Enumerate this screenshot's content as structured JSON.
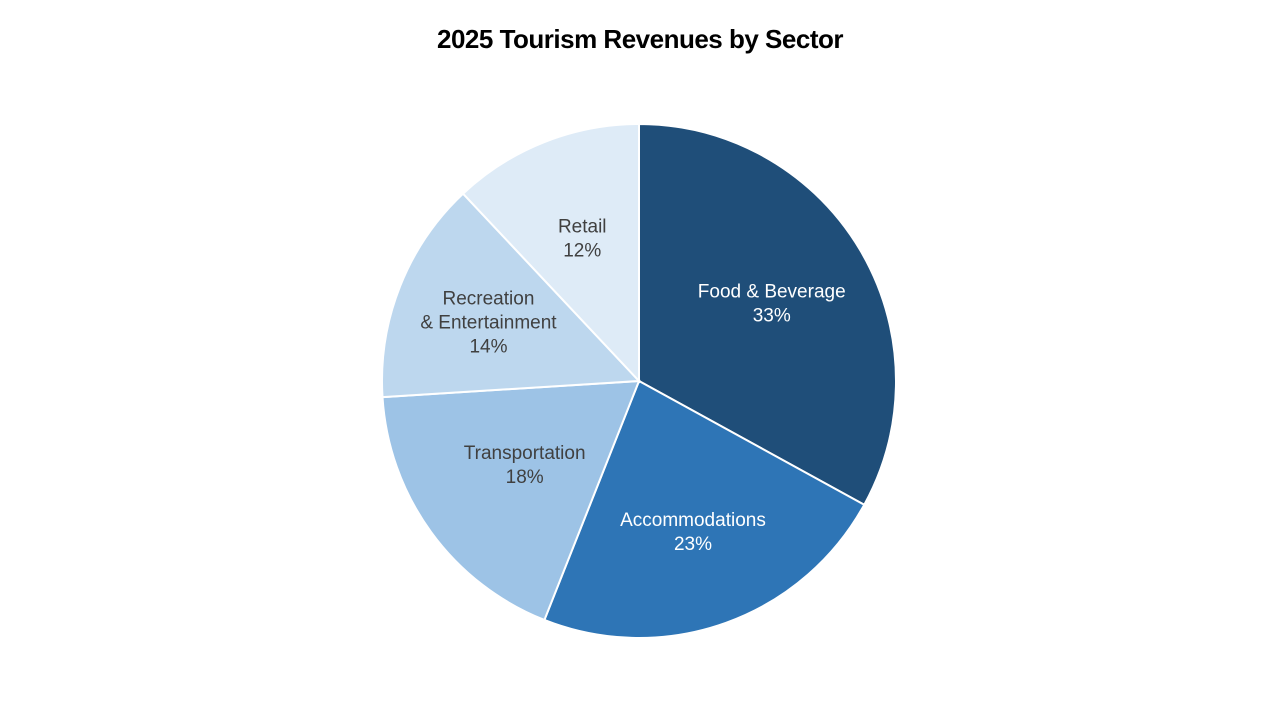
{
  "chart_data": {
    "type": "pie",
    "title": "2025 Tourism Revenues by Sector",
    "start": "top",
    "direction": "clockwise",
    "slices": [
      {
        "label_lines": [
          "Food & Beverage"
        ],
        "value": 33,
        "value_label": "33%",
        "color": "#1F4E79",
        "text_color": "#FFFFFF"
      },
      {
        "label_lines": [
          "Accommodations"
        ],
        "value": 23,
        "value_label": "23%",
        "color": "#2E75B6",
        "text_color": "#FFFFFF"
      },
      {
        "label_lines": [
          "Transportation"
        ],
        "value": 18,
        "value_label": "18%",
        "color": "#9DC3E6",
        "text_color": "#404040"
      },
      {
        "label_lines": [
          "Recreation",
          "& Entertainment"
        ],
        "value": 14,
        "value_label": "14%",
        "color": "#BDD7EE",
        "text_color": "#404040"
      },
      {
        "label_lines": [
          "Retail"
        ],
        "value": 12,
        "value_label": "12%",
        "color": "#DEEBF7",
        "text_color": "#404040"
      }
    ]
  }
}
